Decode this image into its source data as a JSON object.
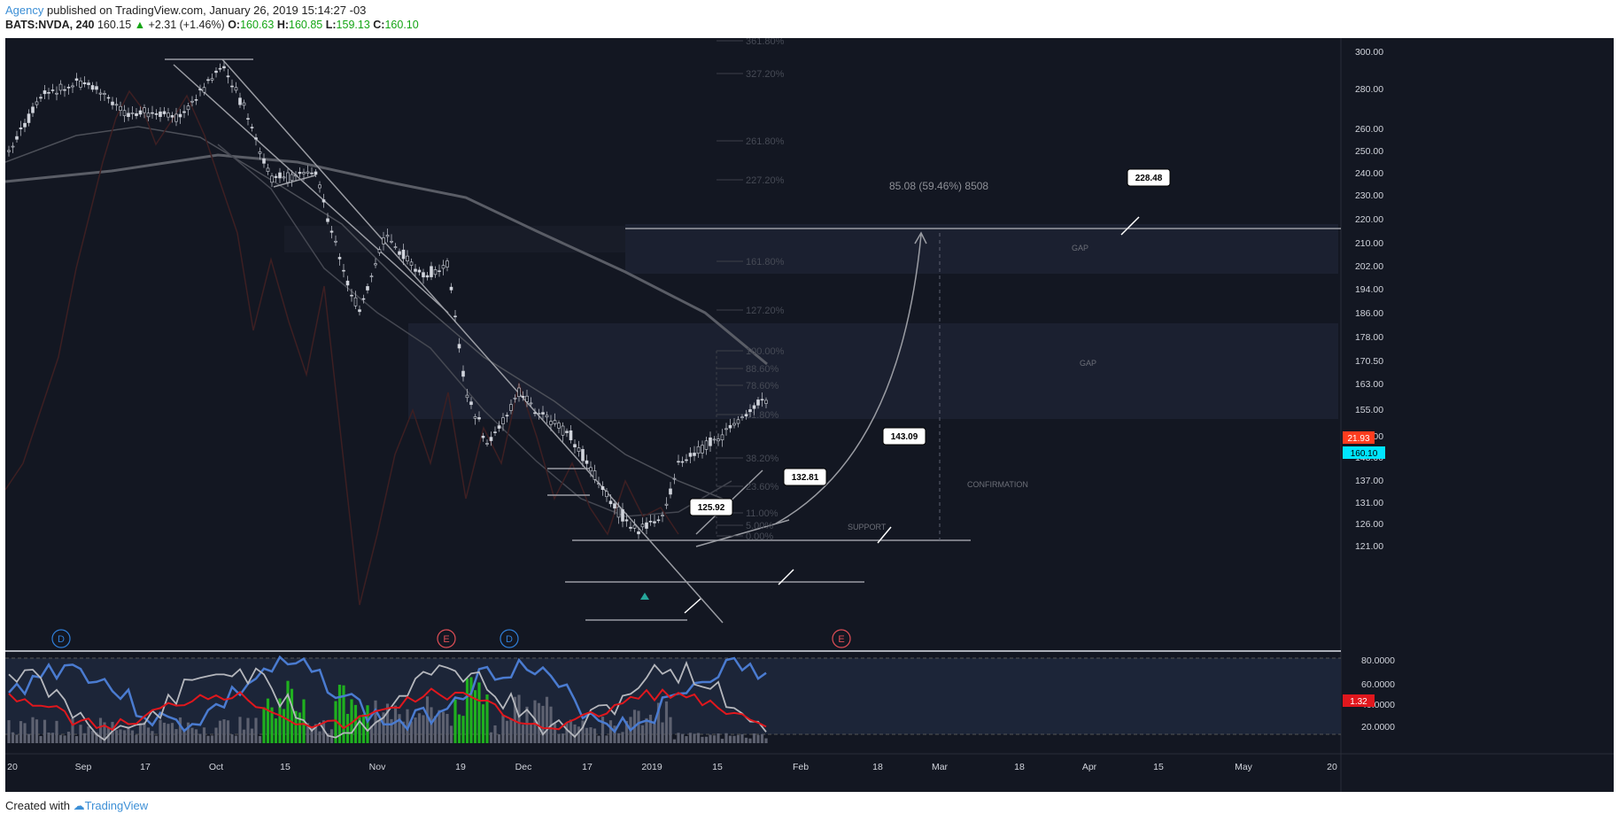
{
  "header": {
    "author": "Agency",
    "published": "published on TradingView.com, January 26, 2019 15:14:27 -03",
    "symbol": "BATS:NVDA, 240",
    "price": "160.15",
    "change": "+2.31 (+1.46%)",
    "open_label": "O:",
    "open": "160.63",
    "high_label": "H:",
    "high": "160.85",
    "low_label": "L:",
    "low": "159.13",
    "close_label": "C:",
    "close": "160.10"
  },
  "price_axis": [
    "300.00",
    "280.00",
    "260.00",
    "250.00",
    "240.00",
    "230.00",
    "220.00",
    "210.00",
    "202.00",
    "194.00",
    "186.00",
    "178.00",
    "170.50",
    "163.00",
    "155.00",
    "149.00",
    "143.00",
    "137.00",
    "131.00",
    "126.00",
    "121.00"
  ],
  "price_badges": {
    "indicator": "21.93",
    "last": "160.10"
  },
  "osc_axis": [
    "80.0000",
    "60.0000",
    "40.0000",
    "20.0000"
  ],
  "osc_badge": "1.32",
  "time_axis": [
    "20",
    "Sep",
    "17",
    "Oct",
    "15",
    "Nov",
    "19",
    "Dec",
    "17",
    "2019",
    "15",
    "Feb",
    "18",
    "Mar",
    "18",
    "Apr",
    "15",
    "May",
    "20"
  ],
  "fib_levels": [
    "361.80%",
    "327.20%",
    "261.80%",
    "227.20%",
    "161.80%",
    "127.20%",
    "100.00%",
    "88.60%",
    "78.60%",
    "61.80%",
    "38.20%",
    "23.60%",
    "11.00%",
    "5.00%",
    "0.00%"
  ],
  "annotations": {
    "projection": "85.08 (59.46%) 8508",
    "gap_top": "GAP",
    "gap_mid": "GAP",
    "confirmation": "CONFIRMATION",
    "support": "SUPPORT"
  },
  "callouts": [
    "228.48",
    "143.09",
    "132.81",
    "125.92"
  ],
  "events": [
    "D",
    "E",
    "D",
    "E"
  ],
  "footer": {
    "created": "Created with",
    "brand": "TradingView"
  }
}
